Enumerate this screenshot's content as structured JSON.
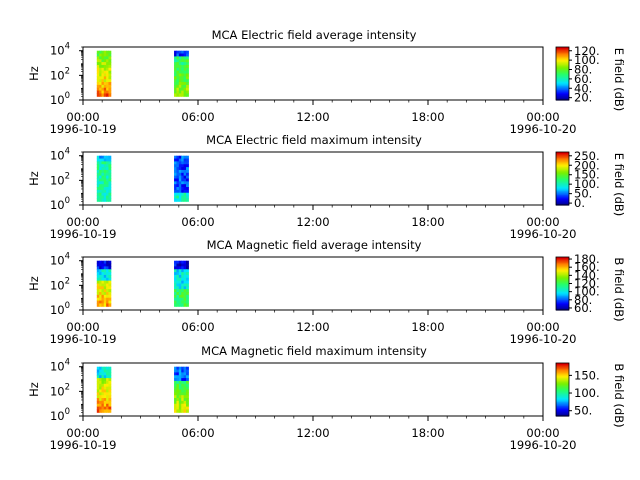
{
  "chart_data": [
    {
      "type": "heatmap",
      "title": "MCA  Electric field average intensity",
      "ylabel": "Hz",
      "y_scale": "log",
      "ylim": [
        1,
        20000
      ],
      "y_ticks": [
        {
          "base": "10",
          "exp": "0"
        },
        {
          "base": "10",
          "exp": "2"
        },
        {
          "base": "10",
          "exp": "4"
        }
      ],
      "x_ticks": [
        "00:00",
        "06:00",
        "12:00",
        "18:00",
        "00:00"
      ],
      "x_dates": {
        "start": "1996-10-19",
        "end": "1996-10-20"
      },
      "xlim_hours": [
        0,
        24
      ],
      "colorbar": {
        "label": "E field (dB)",
        "range": [
          15,
          128
        ],
        "ticks": [
          "20.",
          "40.",
          "60.",
          "80.",
          "100.",
          "120."
        ]
      },
      "data_blocks": [
        {
          "start_hour": 0.72,
          "end_hour": 1.45,
          "dominant_colors": [
            "green",
            "yellow",
            "orange"
          ]
        },
        {
          "start_hour": 4.75,
          "end_hour": 5.5,
          "dominant_colors": [
            "green",
            "cyan",
            "blue"
          ]
        }
      ]
    },
    {
      "type": "heatmap",
      "title": "MCA  Electric field maximum intensity",
      "ylabel": "Hz",
      "y_scale": "log",
      "ylim": [
        1,
        20000
      ],
      "y_ticks": [
        {
          "base": "10",
          "exp": "0"
        },
        {
          "base": "10",
          "exp": "2"
        },
        {
          "base": "10",
          "exp": "4"
        }
      ],
      "x_ticks": [
        "00:00",
        "06:00",
        "12:00",
        "18:00",
        "00:00"
      ],
      "x_dates": {
        "start": "1996-10-19",
        "end": "1996-10-20"
      },
      "xlim_hours": [
        0,
        24
      ],
      "colorbar": {
        "label": "E field (dB)",
        "range": [
          -10,
          270
        ],
        "ticks": [
          "0.",
          "50.",
          "100.",
          "150.",
          "200.",
          "250."
        ]
      },
      "data_blocks": [
        {
          "start_hour": 0.72,
          "end_hour": 1.45,
          "dominant_colors": [
            "cyan",
            "green"
          ]
        },
        {
          "start_hour": 4.75,
          "end_hour": 5.5,
          "dominant_colors": [
            "cyan",
            "blue"
          ]
        }
      ]
    },
    {
      "type": "heatmap",
      "title": "MCA  Magnetic field average intensity",
      "ylabel": "Hz",
      "y_scale": "log",
      "ylim": [
        1,
        20000
      ],
      "y_ticks": [
        {
          "base": "10",
          "exp": "0"
        },
        {
          "base": "10",
          "exp": "2"
        },
        {
          "base": "10",
          "exp": "4"
        }
      ],
      "x_ticks": [
        "00:00",
        "06:00",
        "12:00",
        "18:00",
        "00:00"
      ],
      "x_dates": {
        "start": "1996-10-19",
        "end": "1996-10-20"
      },
      "xlim_hours": [
        0,
        24
      ],
      "colorbar": {
        "label": "B field (dB)",
        "range": [
          55,
          185
        ],
        "ticks": [
          "60.",
          "80.",
          "100.",
          "120.",
          "140.",
          "160.",
          "180."
        ]
      },
      "data_blocks": [
        {
          "start_hour": 0.72,
          "end_hour": 1.45,
          "dominant_colors": [
            "blue",
            "cyan",
            "green",
            "yellow"
          ]
        },
        {
          "start_hour": 4.75,
          "end_hour": 5.5,
          "dominant_colors": [
            "blue",
            "cyan",
            "green"
          ]
        }
      ]
    },
    {
      "type": "heatmap",
      "title": "MCA  Magnetic field maximum intensity",
      "ylabel": "Hz",
      "y_scale": "log",
      "ylim": [
        1,
        20000
      ],
      "y_ticks": [
        {
          "base": "10",
          "exp": "0"
        },
        {
          "base": "10",
          "exp": "2"
        },
        {
          "base": "10",
          "exp": "4"
        }
      ],
      "x_ticks": [
        "00:00",
        "06:00",
        "12:00",
        "18:00",
        "00:00"
      ],
      "x_dates": {
        "start": "1996-10-19",
        "end": "1996-10-20"
      },
      "xlim_hours": [
        0,
        24
      ],
      "colorbar": {
        "label": "B field (dB)",
        "range": [
          35,
          185
        ],
        "ticks": [
          "50.",
          "100.",
          "150."
        ]
      },
      "data_blocks": [
        {
          "start_hour": 0.72,
          "end_hour": 1.45,
          "dominant_colors": [
            "cyan",
            "green",
            "yellow",
            "orange"
          ]
        },
        {
          "start_hour": 4.75,
          "end_hour": 5.5,
          "dominant_colors": [
            "blue",
            "cyan",
            "green",
            "yellow"
          ]
        }
      ]
    }
  ]
}
